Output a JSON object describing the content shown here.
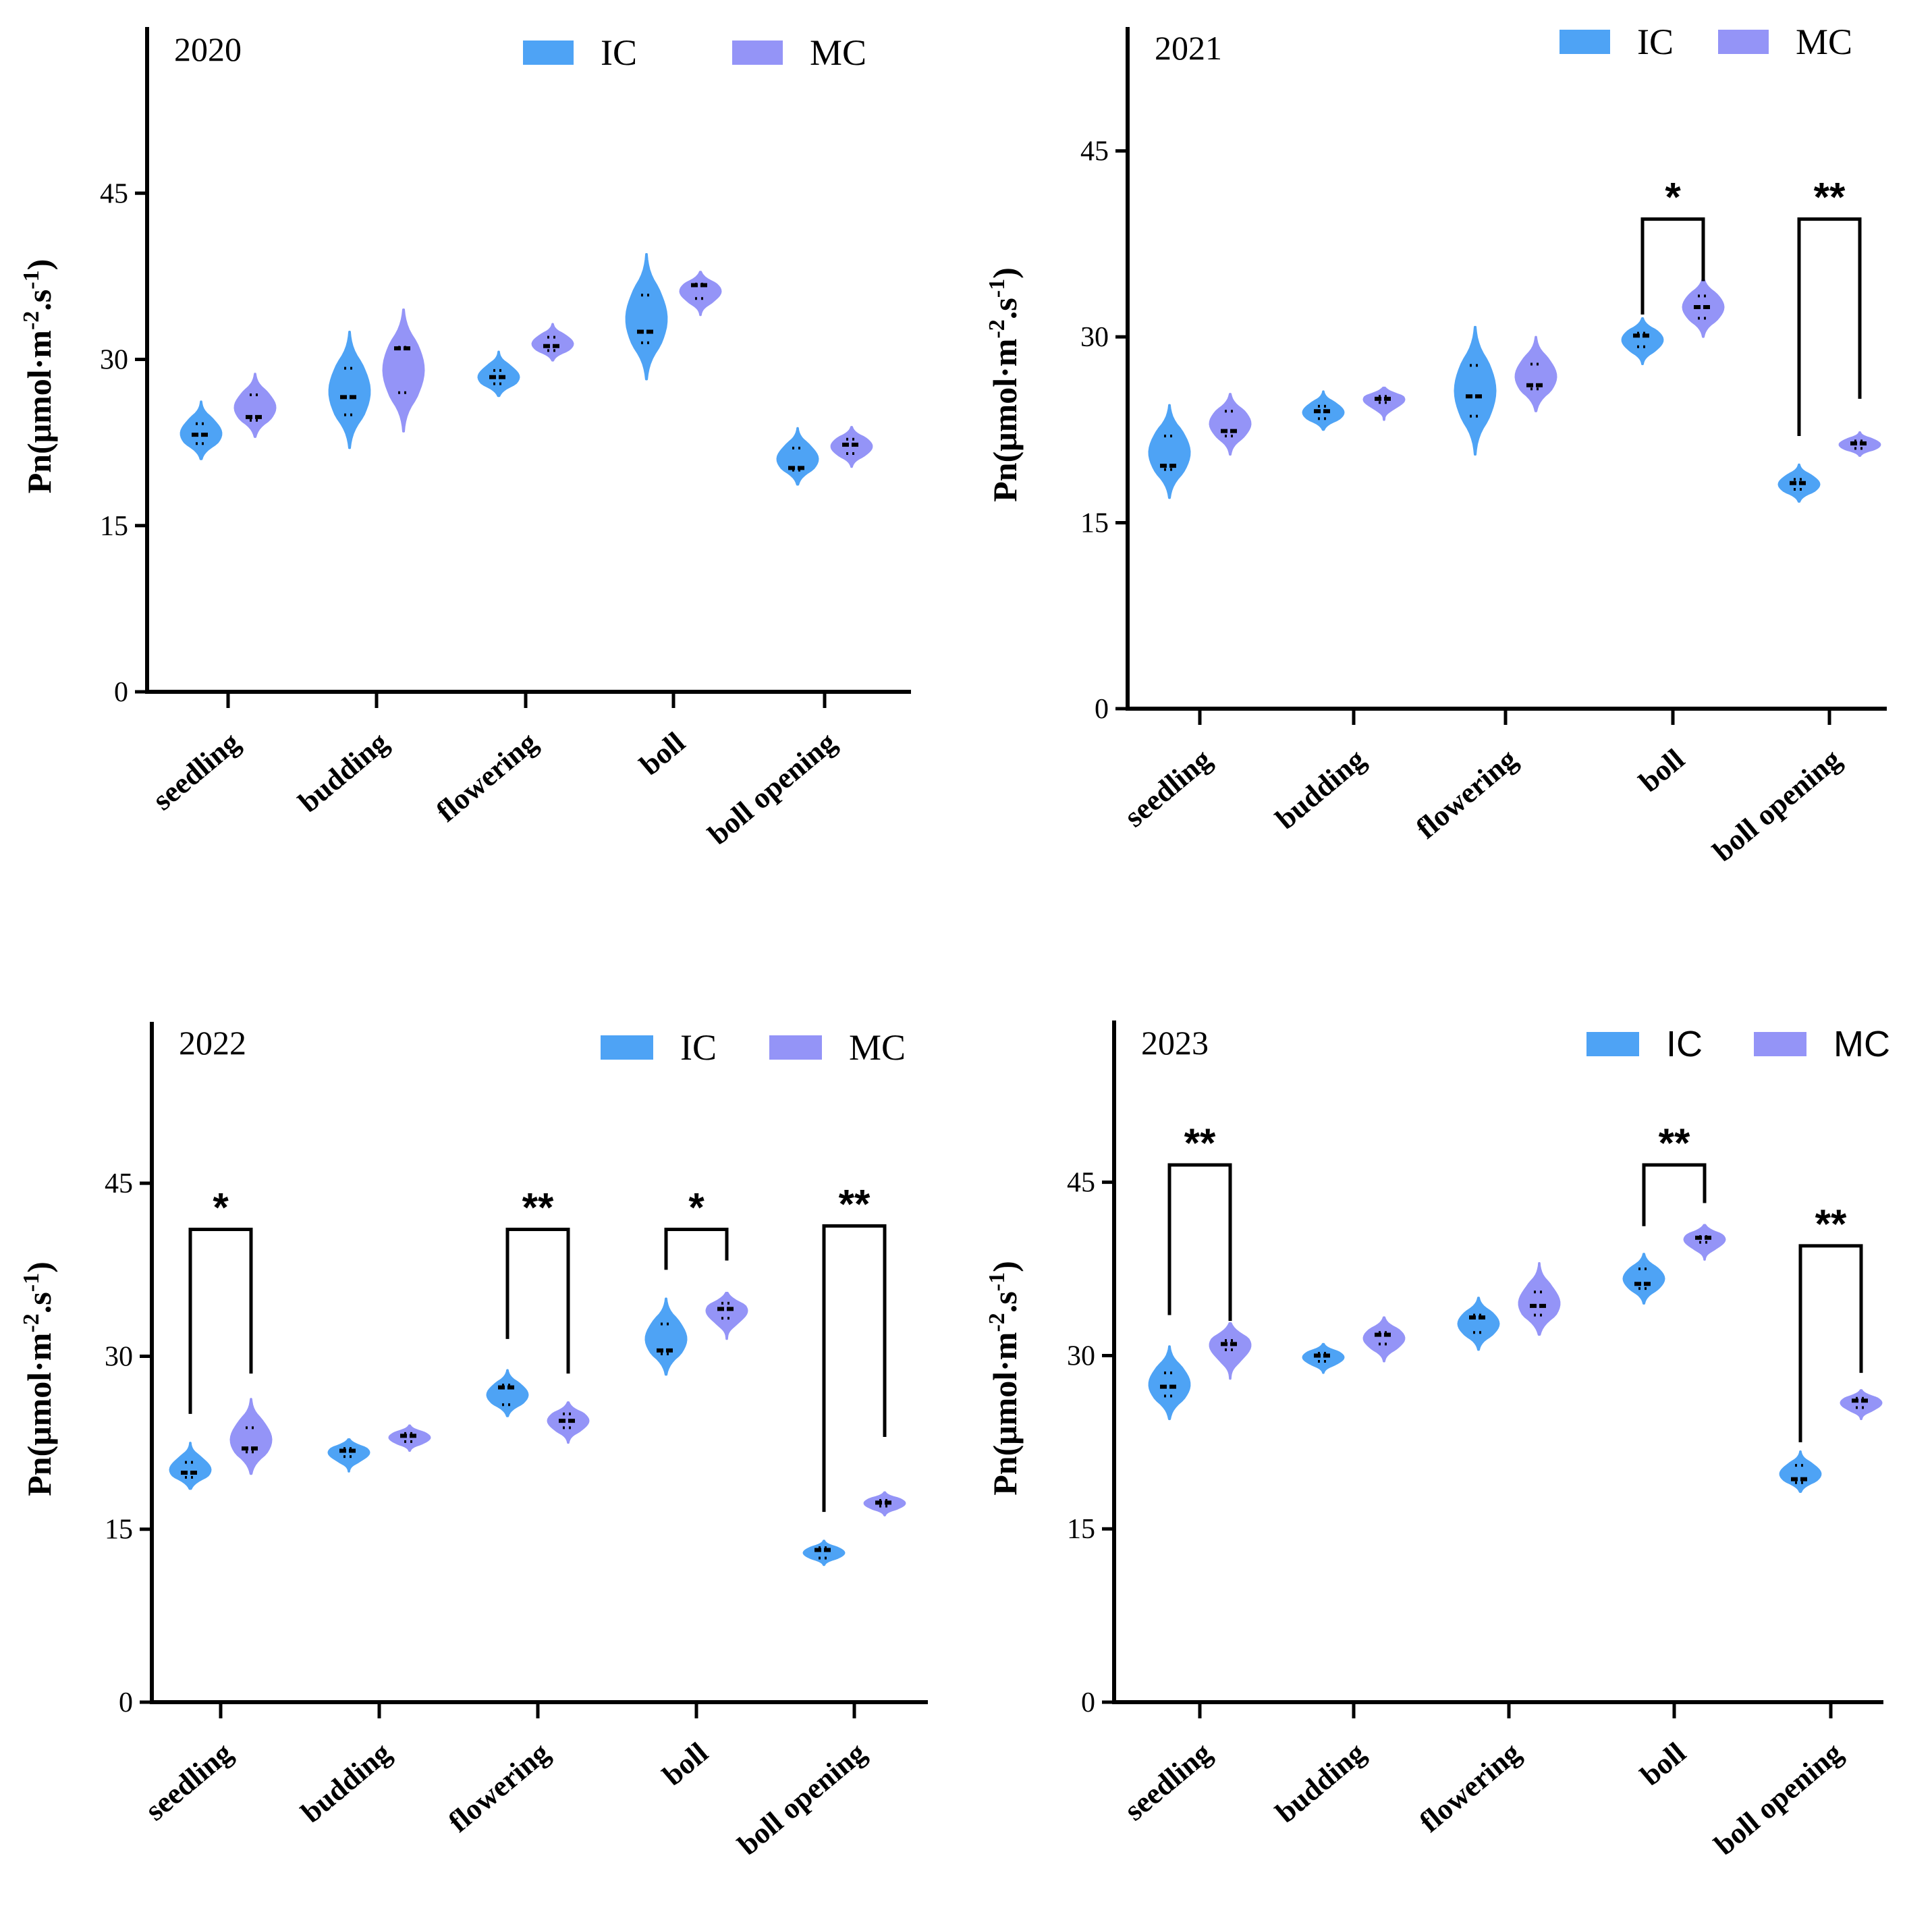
{
  "colors": {
    "IC": "#4ea3f5",
    "MC": "#9494f7",
    "axis": "#000000"
  },
  "ylabel": {
    "base": "Pn(μmol·m",
    "exp1": "-2",
    "mid": ".s",
    "exp2": "-1",
    "end": ")"
  },
  "chart_data": [
    {
      "type": "violin",
      "title": "2020",
      "categories": [
        "seedling",
        "budding",
        "flowering",
        "boll",
        "boll opening"
      ],
      "ylim": [
        0,
        60
      ],
      "yticks": [
        0,
        15,
        30,
        45
      ],
      "legend": [
        "IC",
        "MC"
      ],
      "series": [
        {
          "name": "IC",
          "median": [
            23.2,
            26.6,
            28.4,
            32.5,
            20.2
          ],
          "q1": [
            22.4,
            25.0,
            27.8,
            31.5,
            20.0
          ],
          "q3": [
            24.2,
            29.2,
            29.0,
            35.8,
            22.0
          ],
          "min": [
            21.0,
            22.0,
            26.7,
            28.2,
            18.7
          ],
          "max": [
            26.2,
            32.5,
            30.7,
            39.5,
            23.8
          ]
        },
        {
          "name": "MC",
          "median": [
            24.8,
            31.0,
            31.2,
            36.7,
            22.3
          ],
          "q1": [
            24.5,
            27.0,
            30.8,
            35.5,
            21.5
          ],
          "q3": [
            26.8,
            31.1,
            32.0,
            36.8,
            22.8
          ],
          "min": [
            23.0,
            23.5,
            29.9,
            34.0,
            20.3
          ],
          "max": [
            28.7,
            34.5,
            33.2,
            37.9,
            23.9
          ]
        }
      ],
      "significance": []
    },
    {
      "type": "violin",
      "title": "2021",
      "categories": [
        "seedling",
        "budding",
        "flowering",
        "boll",
        "boll opening"
      ],
      "ylim": [
        0,
        55
      ],
      "yticks": [
        0,
        15,
        30,
        45
      ],
      "legend": [
        "IC",
        "MC"
      ],
      "series": [
        {
          "name": "IC",
          "median": [
            19.6,
            24.0,
            25.2,
            30.1,
            18.2
          ],
          "q1": [
            19.3,
            23.4,
            23.6,
            29.2,
            17.7
          ],
          "q3": [
            22.0,
            24.4,
            27.7,
            30.3,
            18.5
          ],
          "min": [
            17.0,
            22.5,
            20.5,
            27.8,
            16.7
          ],
          "max": [
            24.5,
            25.6,
            30.8,
            31.5,
            19.7
          ]
        },
        {
          "name": "MC",
          "median": [
            22.4,
            25.0,
            26.1,
            32.4,
            21.4
          ],
          "q1": [
            22.0,
            24.7,
            25.8,
            31.5,
            21.0
          ],
          "q3": [
            24.0,
            25.2,
            27.8,
            33.3,
            21.6
          ],
          "min": [
            20.5,
            23.3,
            24.0,
            30.0,
            20.4
          ],
          "max": [
            25.4,
            25.9,
            30.0,
            34.8,
            22.3
          ]
        }
      ],
      "significance": [
        {
          "category": "boll",
          "label": "*",
          "y_left": 31.8,
          "y_right": 34.5,
          "y_top": 39.5
        },
        {
          "category": "boll opening",
          "label": "**",
          "y_left": 22.0,
          "y_right": 25.0,
          "y_top": 39.5
        }
      ]
    },
    {
      "type": "violin",
      "title": "2022",
      "categories": [
        "seedling",
        "budding",
        "flowering",
        "boll",
        "boll opening"
      ],
      "ylim": [
        0,
        59
      ],
      "yticks": [
        0,
        15,
        30,
        45
      ],
      "legend": [
        "IC",
        "MC"
      ],
      "series": [
        {
          "name": "IC",
          "median": [
            19.9,
            21.8,
            27.3,
            30.5,
            13.2
          ],
          "q1": [
            19.5,
            21.3,
            25.8,
            30.2,
            12.5
          ],
          "q3": [
            20.8,
            22.0,
            27.5,
            32.8,
            13.4
          ],
          "min": [
            18.5,
            20.0,
            24.8,
            28.4,
            11.9
          ],
          "max": [
            22.5,
            22.8,
            28.8,
            35.0,
            14.0
          ]
        },
        {
          "name": "MC",
          "median": [
            22.0,
            23.1,
            24.4,
            34.1,
            17.3
          ],
          "q1": [
            21.7,
            22.6,
            23.8,
            33.3,
            17.0
          ],
          "q3": [
            23.8,
            23.3,
            25.0,
            34.6,
            17.5
          ],
          "min": [
            19.8,
            21.8,
            22.5,
            31.5,
            16.2
          ],
          "max": [
            26.3,
            24.0,
            26.0,
            35.5,
            18.2
          ]
        }
      ],
      "significance": [
        {
          "category": "seedling",
          "label": "*",
          "y_left": 25.0,
          "y_right": 28.5,
          "y_top": 41.0
        },
        {
          "category": "flowering",
          "label": "**",
          "y_left": 31.5,
          "y_right": 28.5,
          "y_top": 41.0
        },
        {
          "category": "boll",
          "label": "*",
          "y_left": 37.5,
          "y_right": 38.3,
          "y_top": 41.0
        },
        {
          "category": "boll opening",
          "label": "**",
          "y_left": 16.5,
          "y_right": 23.0,
          "y_top": 41.3
        }
      ]
    },
    {
      "type": "violin",
      "title": "2023",
      "categories": [
        "seedling",
        "budding",
        "flowering",
        "boll",
        "boll opening"
      ],
      "ylim": [
        0,
        59
      ],
      "yticks": [
        0,
        15,
        30,
        45
      ],
      "legend": [
        "IC",
        "MC"
      ],
      "series": [
        {
          "name": "IC",
          "median": [
            27.3,
            30.0,
            33.3,
            36.2,
            19.3
          ],
          "q1": [
            26.5,
            29.5,
            32.0,
            35.8,
            19.0
          ],
          "q3": [
            28.5,
            30.2,
            33.5,
            37.5,
            20.5
          ],
          "min": [
            24.5,
            28.5,
            30.5,
            34.5,
            18.2
          ],
          "max": [
            30.8,
            31.0,
            35.0,
            38.8,
            21.7
          ]
        },
        {
          "name": "MC",
          "median": [
            31.0,
            31.8,
            34.3,
            40.2,
            26.1
          ],
          "q1": [
            30.5,
            31.0,
            33.5,
            39.8,
            25.5
          ],
          "q3": [
            31.3,
            32.0,
            35.5,
            40.3,
            26.3
          ],
          "min": [
            28.0,
            29.5,
            31.8,
            38.3,
            24.5
          ],
          "max": [
            32.8,
            33.3,
            38.0,
            41.3,
            27.0
          ]
        }
      ],
      "significance": [
        {
          "category": "seedling",
          "label": "**",
          "y_left": 33.5,
          "y_right": 33.0,
          "y_top": 46.5
        },
        {
          "category": "boll",
          "label": "**",
          "y_left": 41.2,
          "y_right": 43.2,
          "y_top": 46.5
        },
        {
          "category": "boll opening",
          "label": "**",
          "y_left": 22.5,
          "y_right": 28.5,
          "y_top": 39.5
        }
      ]
    }
  ]
}
